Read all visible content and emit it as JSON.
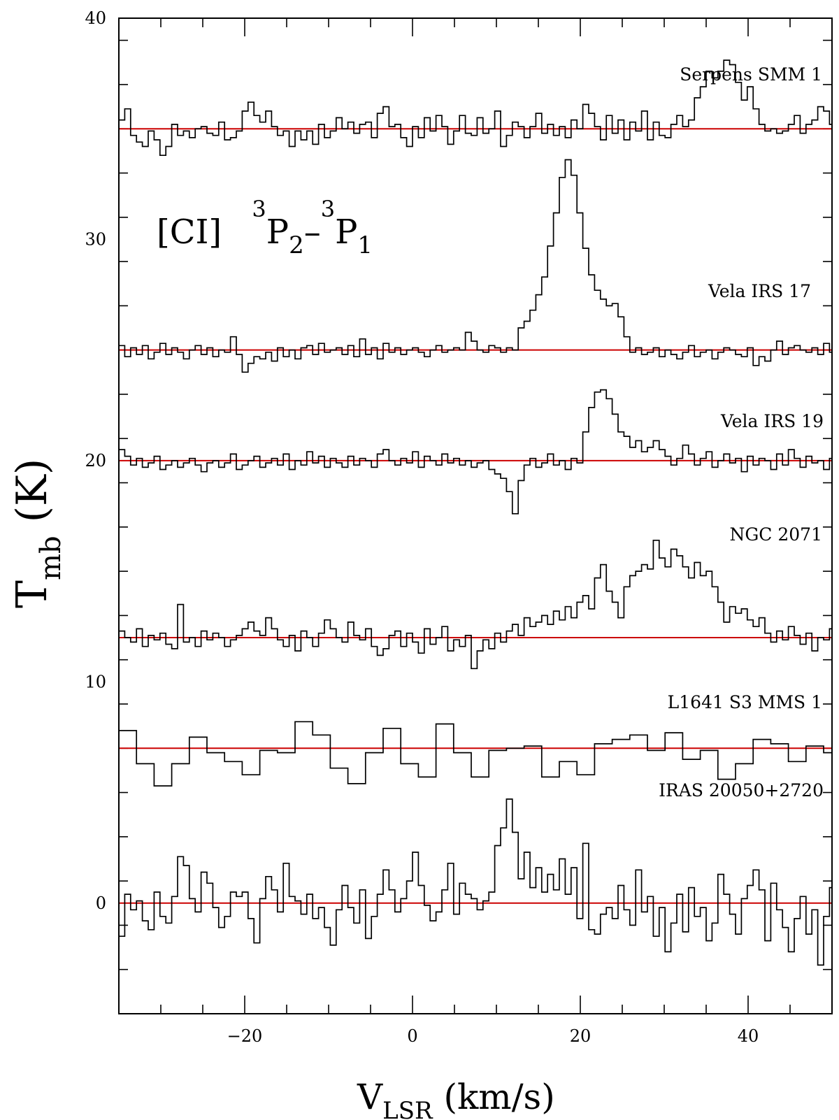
{
  "chart_data": {
    "type": "line",
    "step": true,
    "title": "",
    "annotation": {
      "text": "[CI]",
      "upper_1": "3",
      "sym_1": "P",
      "sub_1": "2",
      "dash": "–",
      "upper_2": "3",
      "sym_2": "P",
      "sub_2": "1"
    },
    "xlabel": {
      "main": "V",
      "sub": "LSR",
      "unit": " (km/s)"
    },
    "ylabel": {
      "main": "T",
      "sub": "mb",
      "unit": " (K)"
    },
    "xlim": [
      -35,
      50
    ],
    "ylim": [
      -5,
      40
    ],
    "x_ticks": [
      -20,
      0,
      20,
      40
    ],
    "x_tick_labels": [
      "−20",
      "0",
      "20",
      "40"
    ],
    "y_ticks": [
      0,
      10,
      20,
      30,
      40
    ],
    "y_tick_labels": [
      "0",
      "10",
      "20",
      "30",
      "40"
    ],
    "baseline_color": "#cc0000",
    "line_color": "#000000",
    "series": [
      {
        "name": "Serpens SMM 1",
        "baseline": 35,
        "x_start": -35,
        "bin": 0.7,
        "values": [
          35.4,
          35.9,
          34.7,
          34.4,
          34.2,
          34.9,
          34.5,
          33.8,
          34.2,
          35.2,
          34.7,
          34.9,
          34.6,
          35.0,
          35.1,
          34.8,
          34.7,
          35.3,
          34.5,
          34.6,
          34.9,
          35.8,
          36.2,
          35.6,
          35.3,
          35.8,
          35.1,
          34.7,
          34.9,
          34.2,
          34.9,
          34.5,
          34.9,
          34.3,
          35.2,
          34.6,
          34.9,
          35.5,
          35.0,
          35.3,
          34.8,
          35.2,
          35.3,
          34.6,
          35.7,
          36.0,
          35.1,
          35.2,
          34.6,
          34.2,
          35.1,
          34.6,
          35.5,
          34.9,
          35.6,
          35.1,
          34.3,
          34.9,
          35.6,
          34.8,
          34.7,
          35.5,
          34.8,
          35.0,
          35.8,
          34.2,
          34.7,
          35.3,
          35.1,
          34.6,
          35.1,
          35.7,
          34.8,
          35.2,
          34.7,
          35.1,
          34.6,
          35.4,
          35.0,
          36.1,
          35.7,
          35.1,
          34.5,
          35.6,
          34.8,
          35.4,
          34.5,
          35.3,
          34.9,
          35.8,
          34.5,
          35.3,
          34.7,
          34.6,
          35.2,
          35.6,
          35.1,
          35.4,
          36.4,
          36.9,
          37.6,
          37.3,
          37.6,
          38.1,
          37.9,
          37.1,
          36.3,
          36.9,
          35.9,
          35.2,
          34.9,
          35.0,
          34.8,
          34.9,
          35.2,
          35.6,
          34.8,
          35.2,
          35.4,
          36.0,
          35.8,
          35.2,
          34.8,
          34.6,
          34.8,
          34.9,
          34.4,
          34.9,
          34.6,
          34.2,
          35.5,
          34.7,
          35.3,
          34.6,
          34.9,
          35.4,
          34.6,
          34.9,
          34.4,
          35.1,
          34.8,
          35.4,
          34.7,
          35.9,
          34.8,
          35.2,
          35.8,
          34.6,
          34.2,
          34.9,
          35.5,
          34.8,
          35.2,
          34.6,
          34.9,
          35.5,
          36.5,
          35.1,
          34.3,
          34.9,
          35.6,
          34.8,
          34.7,
          34.9,
          34.5,
          34.8,
          34.3,
          34.7,
          35.9,
          35.4,
          34.6,
          35.2,
          34.8,
          34.9,
          33.8,
          34.5,
          34.9,
          35.6,
          35.1,
          34.8,
          35.1,
          35.4,
          34.6,
          35.5,
          35.2,
          35.7,
          35.1,
          35.6,
          35.3,
          35.8,
          35.2,
          35.4,
          36.0,
          35.1,
          34.6,
          34.9,
          35.2,
          34.2,
          34.4
        ]
      },
      {
        "name": "Vela IRS 17",
        "baseline": 25,
        "x_start": -35,
        "bin": 0.7,
        "values": [
          25.2,
          24.7,
          25.1,
          24.8,
          25.2,
          24.6,
          24.9,
          25.3,
          24.8,
          25.1,
          24.9,
          24.6,
          25.0,
          25.2,
          24.8,
          25.1,
          24.7,
          25.0,
          24.9,
          25.6,
          24.8,
          24.0,
          24.4,
          24.7,
          24.6,
          24.9,
          24.5,
          25.1,
          24.7,
          25.0,
          24.6,
          25.1,
          25.2,
          24.8,
          25.3,
          24.9,
          25.0,
          25.1,
          24.8,
          25.2,
          24.7,
          25.5,
          24.8,
          25.1,
          24.6,
          25.3,
          24.9,
          25.1,
          24.8,
          25.0,
          25.1,
          24.9,
          24.7,
          25.0,
          25.2,
          24.9,
          25.0,
          25.1,
          25.0,
          25.8,
          25.4,
          25.0,
          24.9,
          25.2,
          25.1,
          24.9,
          25.1,
          25.0,
          26.0,
          26.3,
          26.8,
          27.5,
          28.3,
          29.7,
          31.2,
          32.8,
          33.6,
          32.9,
          31.2,
          29.6,
          28.4,
          27.7,
          27.3,
          27.0,
          27.1,
          26.5,
          25.6,
          24.9,
          25.1,
          24.8,
          24.9,
          25.1,
          24.7,
          25.0,
          24.8,
          24.6,
          24.9,
          25.2,
          24.7,
          24.9,
          25.0,
          24.6,
          24.9,
          25.1,
          25.0,
          24.8,
          24.7,
          25.1,
          24.3,
          24.7,
          24.5,
          25.0,
          25.4,
          24.8,
          25.1,
          25.2,
          25.0,
          24.9,
          25.1,
          24.8,
          25.3,
          24.9,
          25.1,
          24.6,
          25.1,
          24.8,
          24.3,
          24.6,
          25.0,
          24.7,
          24.9,
          25.2,
          24.8,
          25.0,
          25.3,
          24.9,
          24.7,
          25.1,
          24.8,
          25.0,
          24.9,
          25.1,
          24.7,
          25.0,
          24.8,
          25.1,
          25.0,
          24.9,
          25.2,
          24.8,
          25.0,
          24.9,
          25.1,
          24.8,
          25.0,
          25.2,
          24.9,
          25.1,
          24.8,
          25.0,
          24.9,
          25.1,
          25.0,
          24.8,
          25.0,
          25.1,
          24.9,
          25.0
        ]
      },
      {
        "name": "Vela IRS 19",
        "baseline": 20,
        "x_start": -35,
        "bin": 0.7,
        "values": [
          20.5,
          20.2,
          19.8,
          20.1,
          19.7,
          19.9,
          20.2,
          19.6,
          19.8,
          20.0,
          19.7,
          19.9,
          20.1,
          19.8,
          19.5,
          19.9,
          20.0,
          19.7,
          19.9,
          20.3,
          19.6,
          19.8,
          20.0,
          20.2,
          19.7,
          19.9,
          20.1,
          19.8,
          20.3,
          19.6,
          20.0,
          19.8,
          20.4,
          19.9,
          20.2,
          19.7,
          20.1,
          19.9,
          19.7,
          20.2,
          19.8,
          20.1,
          20.0,
          19.7,
          20.3,
          20.5,
          20.0,
          19.8,
          20.1,
          19.9,
          20.4,
          19.7,
          20.2,
          20.0,
          19.8,
          20.3,
          19.9,
          20.1,
          19.8,
          20.0,
          19.7,
          19.9,
          20.0,
          19.6,
          19.4,
          19.2,
          18.6,
          17.6,
          19.1,
          19.8,
          20.1,
          19.7,
          19.9,
          20.3,
          19.8,
          20.0,
          19.6,
          20.1,
          19.9,
          21.3,
          22.4,
          23.1,
          23.2,
          22.8,
          22.1,
          21.3,
          21.1,
          20.6,
          20.9,
          20.4,
          20.6,
          20.9,
          20.5,
          20.2,
          19.8,
          20.1,
          20.7,
          20.3,
          19.8,
          20.1,
          20.4,
          19.7,
          20.0,
          20.3,
          19.9,
          20.1,
          19.5,
          20.2,
          19.8,
          20.1,
          20.0,
          19.6,
          20.3,
          19.8,
          20.5,
          20.1,
          19.7,
          20.2,
          19.9,
          20.0,
          19.6,
          20.1,
          19.8,
          20.2,
          19.9,
          20.1,
          19.5,
          19.8,
          20.1,
          19.7,
          19.9,
          20.2,
          20.0,
          19.8,
          20.1,
          19.6,
          20.3,
          19.9,
          19.7,
          20.0,
          20.2,
          19.8,
          20.1,
          20.4,
          19.9,
          19.7,
          20.0,
          20.3,
          19.8,
          20.1,
          19.9,
          20.2,
          19.8,
          20.0,
          19.7,
          20.2,
          20.0,
          19.8,
          20.1,
          19.9,
          20.0,
          19.8,
          20.1,
          19.9
        ]
      },
      {
        "name": "NGC 2071",
        "baseline": 12,
        "x_start": -35,
        "bin": 0.7,
        "values": [
          12.3,
          12.0,
          11.8,
          12.4,
          11.6,
          12.1,
          11.9,
          12.2,
          11.7,
          11.5,
          13.5,
          11.8,
          12.0,
          11.6,
          12.3,
          11.9,
          12.2,
          12.0,
          11.6,
          11.9,
          12.1,
          12.4,
          12.7,
          12.3,
          12.1,
          12.9,
          12.4,
          11.9,
          11.6,
          12.1,
          11.4,
          12.3,
          12.0,
          11.6,
          12.2,
          12.8,
          12.4,
          12.0,
          11.8,
          12.7,
          12.1,
          11.9,
          12.4,
          11.6,
          11.2,
          11.5,
          12.1,
          12.3,
          11.6,
          12.2,
          11.8,
          11.3,
          12.4,
          11.7,
          12.0,
          12.5,
          11.4,
          11.9,
          11.6,
          12.1,
          10.6,
          11.4,
          11.9,
          11.5,
          12.2,
          11.8,
          12.3,
          12.6,
          12.1,
          12.9,
          12.5,
          12.7,
          13.0,
          12.6,
          13.2,
          12.8,
          13.4,
          12.9,
          13.6,
          13.9,
          13.3,
          14.7,
          15.3,
          14.1,
          13.6,
          12.9,
          14.3,
          14.8,
          15.0,
          15.3,
          15.1,
          16.4,
          15.6,
          15.2,
          16.0,
          15.7,
          15.2,
          14.7,
          15.4,
          14.8,
          15.0,
          14.3,
          13.6,
          12.7,
          13.4,
          13.1,
          13.3,
          12.8,
          12.5,
          12.9,
          12.2,
          11.8,
          12.3,
          11.9,
          12.5,
          12.1,
          11.7,
          12.2,
          11.4,
          12.0,
          11.9,
          12.4,
          11.6,
          12.3,
          11.8,
          12.1,
          11.7,
          12.6,
          11.9,
          12.2,
          11.6,
          12.3,
          11.8,
          12.0,
          11.9,
          12.5,
          12.2,
          11.7,
          12.6,
          12.0,
          13.1,
          11.4,
          12.3,
          12.9,
          11.6,
          12.4,
          10.8,
          13.5,
          12.2,
          11.5,
          10.4,
          11.8,
          11.2,
          11.7,
          11.5,
          11.9,
          11.6,
          12.0,
          11.8,
          12.3,
          12.1,
          12.5,
          12.0,
          12.4,
          11.8,
          12.9,
          12.1,
          11.7,
          12.3,
          11.9,
          12.2,
          12.6,
          12.1,
          13.2,
          11.9,
          12.3,
          11.7,
          11.6,
          12.1,
          12.0
        ]
      },
      {
        "name": "L1641 S3 MMS 1",
        "baseline": 7,
        "x_start": -35,
        "bin": 2.1,
        "values": [
          7.8,
          6.3,
          5.3,
          6.3,
          7.5,
          6.8,
          6.4,
          5.8,
          6.9,
          6.8,
          8.2,
          7.6,
          6.1,
          5.4,
          6.8,
          7.9,
          6.3,
          5.7,
          8.1,
          6.8,
          5.7,
          6.9,
          7.0,
          7.1,
          5.7,
          6.4,
          5.8,
          7.2,
          7.4,
          7.6,
          6.9,
          7.7,
          6.5,
          6.9,
          5.6,
          6.3,
          7.4,
          7.2,
          6.4,
          7.1,
          6.8
        ]
      },
      {
        "name": "IRAS 20050+2720",
        "baseline": 0,
        "x_start": -35,
        "bin": 0.7,
        "values": [
          -1.5,
          0.4,
          -0.3,
          0.1,
          -0.8,
          -1.2,
          0.5,
          -0.6,
          -0.9,
          0.3,
          2.1,
          1.7,
          0.2,
          -0.4,
          1.4,
          0.9,
          -0.2,
          -1.1,
          -0.6,
          0.5,
          0.3,
          0.5,
          -0.7,
          -1.8,
          0.2,
          1.2,
          0.6,
          -0.4,
          1.8,
          0.3,
          0.1,
          -0.5,
          0.4,
          -0.7,
          -0.2,
          -1.1,
          -1.9,
          -0.3,
          0.8,
          -0.2,
          -0.9,
          0.6,
          -1.6,
          -0.6,
          0.4,
          1.5,
          0.6,
          -0.4,
          0.2,
          1.0,
          2.3,
          0.8,
          -0.1,
          -0.8,
          -0.4,
          0.6,
          1.8,
          -0.5,
          0.9,
          0.4,
          0.2,
          -0.3,
          0.1,
          0.5,
          2.6,
          3.4,
          4.7,
          3.2,
          1.1,
          2.3,
          0.7,
          1.6,
          0.5,
          1.3,
          0.6,
          2.0,
          0.4,
          1.6,
          -0.7,
          2.7,
          -1.2,
          -1.4,
          -0.5,
          -0.2,
          -0.7,
          0.8,
          -0.3,
          -1.0,
          1.5,
          -0.4,
          0.3,
          -1.5,
          -0.2,
          -2.2,
          -0.9,
          0.4,
          -1.3,
          0.7,
          -0.6,
          -0.2,
          -1.7,
          -0.9,
          1.3,
          0.4,
          -0.5,
          -1.4,
          0.2,
          0.8,
          1.5,
          0.6,
          -1.7,
          0.9,
          -0.3,
          -1.1,
          -2.2,
          -0.7,
          0.3,
          -1.4,
          -0.3,
          -2.8,
          -0.6,
          0.7,
          -1.6,
          -0.4,
          2.5,
          0.6,
          -0.8,
          -1.9,
          -0.5,
          0.4,
          -1.3,
          0.3,
          2.4,
          -0.6,
          -1.1,
          0.1,
          -0.7,
          -0.3,
          0.5,
          -1.2,
          1.4,
          -0.4,
          -0.9,
          1.6,
          0.2,
          -1.8,
          -0.6,
          0.9,
          -0.3,
          -1.1,
          0.4,
          -1.5,
          -0.7,
          0.6,
          -0.2,
          1.3,
          -0.8,
          0.4,
          -0.5,
          1.1,
          -0.9,
          0.3,
          1.5,
          -0.6,
          -1.4,
          0.2,
          0.9,
          -0.5,
          1.7
        ]
      }
    ]
  }
}
